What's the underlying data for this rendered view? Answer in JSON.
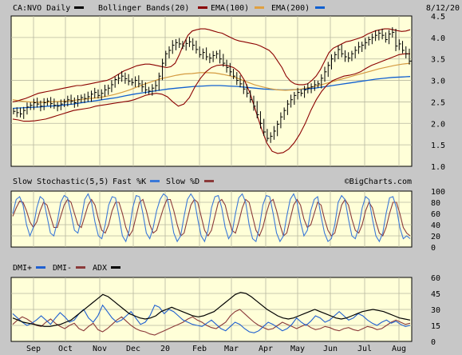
{
  "chart_data": {
    "type": "line",
    "date": "8/12/20",
    "watermark": "©BigCharts.com",
    "price_panel": {
      "ticker_label": "CA:NVO Daily",
      "legend": [
        {
          "label": "Bollinger Bands(20)",
          "color": "#8b0000"
        },
        {
          "label": "EMA(100)",
          "color": "#e0a040"
        },
        {
          "label": "EMA(200)",
          "color": "#1060d0"
        }
      ],
      "ticker_color": "#000000",
      "ylim": [
        1.0,
        4.5
      ],
      "yticks": [
        "4.5",
        "4.0",
        "3.5",
        "3.0",
        "2.5",
        "2.0",
        "1.5",
        "1.0"
      ],
      "close": [
        2.28,
        2.25,
        2.22,
        2.3,
        2.38,
        2.42,
        2.48,
        2.45,
        2.4,
        2.48,
        2.52,
        2.46,
        2.42,
        2.4,
        2.45,
        2.5,
        2.55,
        2.52,
        2.48,
        2.55,
        2.6,
        2.58,
        2.62,
        2.68,
        2.72,
        2.65,
        2.7,
        2.78,
        2.82,
        2.9,
        3.02,
        3.05,
        3.1,
        3.04,
        2.98,
        2.95,
        3.0,
        2.92,
        2.85,
        2.78,
        2.75,
        2.82,
        2.88,
        3.1,
        3.4,
        3.62,
        3.7,
        3.82,
        3.88,
        3.85,
        3.8,
        3.86,
        3.9,
        3.82,
        3.72,
        3.6,
        3.65,
        3.55,
        3.52,
        3.58,
        3.62,
        3.5,
        3.4,
        3.3,
        3.2,
        3.1,
        3.0,
        2.92,
        2.8,
        2.7,
        2.55,
        2.4,
        2.2,
        2.0,
        1.8,
        1.65,
        1.7,
        1.82,
        1.98,
        2.15,
        2.3,
        2.45,
        2.55,
        2.65,
        2.72,
        2.7,
        2.78,
        2.82,
        2.85,
        2.9,
        2.92,
        3.05,
        3.2,
        3.35,
        3.5,
        3.6,
        3.72,
        3.62,
        3.55,
        3.52,
        3.62,
        3.7,
        3.78,
        3.82,
        3.88,
        3.95,
        4.0,
        4.05,
        4.1,
        4.05,
        3.95,
        4.08,
        4.12,
        3.8,
        3.85,
        3.7,
        3.62,
        3.45
      ],
      "bb_upper": [
        2.5,
        2.52,
        2.55,
        2.58,
        2.62,
        2.66,
        2.7,
        2.72,
        2.74,
        2.76,
        2.78,
        2.8,
        2.82,
        2.84,
        2.86,
        2.88,
        2.88,
        2.9,
        2.92,
        2.94,
        2.96,
        2.98,
        3.0,
        3.04,
        3.1,
        3.16,
        3.22,
        3.26,
        3.3,
        3.34,
        3.36,
        3.38,
        3.38,
        3.36,
        3.34,
        3.32,
        3.3,
        3.32,
        3.4,
        3.6,
        3.85,
        4.05,
        4.15,
        4.18,
        4.2,
        4.2,
        4.18,
        4.15,
        4.12,
        4.1,
        4.05,
        4.0,
        3.95,
        3.92,
        3.9,
        3.88,
        3.86,
        3.84,
        3.8,
        3.75,
        3.7,
        3.6,
        3.45,
        3.3,
        3.1,
        2.98,
        2.92,
        2.9,
        2.9,
        2.92,
        3.0,
        3.1,
        3.25,
        3.45,
        3.65,
        3.75,
        3.8,
        3.85,
        3.9,
        3.92,
        3.95,
        3.98,
        4.02,
        4.08,
        4.12,
        4.16,
        4.18,
        4.2,
        4.2,
        4.18,
        4.16,
        4.14,
        4.15,
        4.18
      ],
      "bb_lower": [
        2.1,
        2.08,
        2.05,
        2.05,
        2.06,
        2.08,
        2.1,
        2.14,
        2.18,
        2.22,
        2.26,
        2.3,
        2.32,
        2.34,
        2.36,
        2.4,
        2.42,
        2.44,
        2.46,
        2.48,
        2.5,
        2.52,
        2.55,
        2.6,
        2.65,
        2.68,
        2.7,
        2.68,
        2.62,
        2.5,
        2.4,
        2.45,
        2.6,
        2.85,
        3.05,
        3.2,
        3.3,
        3.35,
        3.36,
        3.34,
        3.3,
        3.2,
        3.0,
        2.7,
        2.3,
        1.9,
        1.55,
        1.35,
        1.3,
        1.32,
        1.4,
        1.55,
        1.75,
        2.0,
        2.3,
        2.55,
        2.75,
        2.9,
        3.0,
        3.05,
        3.1,
        3.12,
        3.15,
        3.2,
        3.28,
        3.35,
        3.4,
        3.45,
        3.5,
        3.55,
        3.6,
        3.62,
        3.62
      ],
      "ema100": [
        2.55,
        2.52,
        2.5,
        2.49,
        2.49,
        2.5,
        2.51,
        2.52,
        2.54,
        2.56,
        2.58,
        2.6,
        2.63,
        2.67,
        2.72,
        2.78,
        2.85,
        2.92,
        2.98,
        3.04,
        3.08,
        3.12,
        3.15,
        3.16,
        3.18,
        3.18,
        3.17,
        3.14,
        3.1,
        3.04,
        2.97,
        2.9,
        2.85,
        2.81,
        2.78,
        2.77,
        2.78,
        2.8,
        2.83,
        2.87,
        2.92,
        2.97,
        3.02,
        3.07,
        3.12,
        3.17,
        3.22,
        3.27,
        3.31,
        3.35,
        3.38,
        3.4
      ],
      "ema200": [
        2.35,
        2.36,
        2.37,
        2.38,
        2.4,
        2.41,
        2.43,
        2.45,
        2.48,
        2.51,
        2.54,
        2.57,
        2.6,
        2.64,
        2.68,
        2.71,
        2.74,
        2.77,
        2.8,
        2.82,
        2.84,
        2.86,
        2.87,
        2.88,
        2.88,
        2.87,
        2.86,
        2.84,
        2.82,
        2.8,
        2.79,
        2.78,
        2.78,
        2.79,
        2.8,
        2.82,
        2.85,
        2.88,
        2.91,
        2.94,
        2.97,
        3.0,
        3.03,
        3.05,
        3.07,
        3.08,
        3.09
      ]
    },
    "stochastic_panel": {
      "title": "Slow Stochastic(5,5)",
      "legend": [
        {
          "label": "Fast %K",
          "color": "#3a78d8"
        },
        {
          "label": "Slow %D",
          "color": "#8b3a3a"
        }
      ],
      "ylim": [
        0,
        100
      ],
      "yticks": [
        "100",
        "80",
        "60",
        "40",
        "20",
        "0"
      ],
      "fast_k": [
        60,
        85,
        90,
        75,
        40,
        20,
        35,
        70,
        90,
        85,
        55,
        25,
        20,
        45,
        80,
        92,
        88,
        60,
        30,
        25,
        50,
        85,
        95,
        80,
        45,
        20,
        15,
        40,
        75,
        90,
        88,
        55,
        20,
        10,
        30,
        70,
        92,
        90,
        60,
        25,
        15,
        35,
        65,
        85,
        95,
        90,
        60,
        25,
        10,
        20,
        55,
        85,
        95,
        85,
        50,
        20,
        10,
        30,
        70,
        90,
        92,
        70,
        35,
        15,
        25,
        60,
        88,
        95,
        80,
        40,
        15,
        10,
        35,
        75,
        92,
        90,
        60,
        25,
        10,
        20,
        55,
        85,
        95,
        80,
        45,
        20,
        30,
        65,
        85,
        90,
        55,
        25,
        10,
        15,
        40,
        80,
        92,
        85,
        50,
        20,
        15,
        35,
        70,
        90,
        85,
        50,
        20,
        10,
        25,
        60,
        88,
        90,
        70,
        35,
        15,
        20,
        15
      ],
      "slow_d": [
        55,
        70,
        82,
        80,
        65,
        45,
        35,
        45,
        65,
        80,
        75,
        55,
        35,
        35,
        55,
        75,
        85,
        80,
        60,
        40,
        35,
        55,
        75,
        85,
        75,
        50,
        30,
        25,
        40,
        65,
        80,
        80,
        60,
        35,
        20,
        30,
        55,
        80,
        85,
        65,
        40,
        25,
        30,
        50,
        70,
        85,
        85,
        65,
        40,
        20,
        25,
        50,
        75,
        85,
        80,
        55,
        30,
        20,
        30,
        55,
        80,
        85,
        75,
        50,
        30,
        25,
        45,
        70,
        85,
        80,
        55,
        30,
        20,
        35,
        60,
        80,
        85,
        65,
        40,
        20,
        25,
        50,
        75,
        85,
        75,
        50,
        35,
        40,
        60,
        80,
        75,
        50,
        30,
        20,
        25,
        50,
        75,
        85,
        75,
        50,
        30,
        25,
        40,
        65,
        80,
        70,
        45,
        25,
        20,
        35,
        60,
        80,
        80,
        60,
        35,
        25,
        20
      ]
    },
    "dmi_panel": {
      "legend": [
        {
          "label": "DMI+",
          "color": "#2060d0"
        },
        {
          "label": "DMI-",
          "color": "#8b3a3a"
        },
        {
          "label": "ADX",
          "color": "#000000"
        }
      ],
      "ylim": [
        0,
        60
      ],
      "yticks": [
        "60",
        "45",
        "30",
        "15",
        "0"
      ],
      "dmi_plus": [
        26,
        22,
        18,
        15,
        17,
        20,
        24,
        20,
        16,
        22,
        27,
        23,
        18,
        20,
        26,
        30,
        22,
        18,
        24,
        34,
        28,
        22,
        18,
        20,
        24,
        28,
        22,
        16,
        18,
        24,
        34,
        32,
        26,
        30,
        28,
        24,
        20,
        18,
        16,
        15,
        14,
        17,
        20,
        16,
        12,
        10,
        14,
        18,
        16,
        12,
        9,
        8,
        10,
        14,
        18,
        16,
        13,
        10,
        12,
        16,
        22,
        18,
        15,
        19,
        24,
        22,
        18,
        20,
        24,
        28,
        24,
        20,
        22,
        26,
        24,
        20,
        17,
        15,
        18,
        20,
        17,
        19,
        16,
        14,
        15
      ],
      "dmi_minus": [
        16,
        20,
        23,
        21,
        18,
        15,
        14,
        18,
        21,
        17,
        14,
        12,
        15,
        17,
        12,
        10,
        14,
        17,
        11,
        9,
        12,
        16,
        20,
        23,
        19,
        15,
        12,
        10,
        9,
        7,
        6,
        8,
        10,
        12,
        14,
        16,
        18,
        21,
        23,
        20,
        18,
        15,
        13,
        12,
        15,
        18,
        24,
        28,
        30,
        26,
        22,
        18,
        15,
        13,
        11,
        12,
        15,
        18,
        16,
        14,
        12,
        14,
        16,
        13,
        11,
        12,
        14,
        13,
        11,
        10,
        12,
        13,
        11,
        10,
        12,
        14,
        13,
        11,
        12,
        15,
        18,
        20,
        18,
        16,
        17
      ],
      "adx": [
        22,
        20,
        18,
        17,
        16,
        15,
        14,
        14,
        15,
        16,
        18,
        20,
        24,
        28,
        32,
        36,
        40,
        44,
        42,
        38,
        34,
        30,
        26,
        24,
        22,
        21,
        22,
        24,
        28,
        30,
        32,
        30,
        28,
        26,
        24,
        23,
        24,
        26,
        28,
        32,
        36,
        40,
        44,
        46,
        45,
        42,
        38,
        34,
        30,
        27,
        24,
        22,
        21,
        22,
        24,
        26,
        28,
        30,
        28,
        26,
        24,
        22,
        21,
        22,
        24,
        26,
        28,
        29,
        30,
        29,
        28,
        26,
        24,
        22,
        21,
        20
      ]
    },
    "x_labels": [
      "Sep",
      "Oct",
      "Nov",
      "Dec",
      "20",
      "Feb",
      "Mar",
      "Apr",
      "May",
      "Jun",
      "Jul",
      "Aug"
    ]
  }
}
